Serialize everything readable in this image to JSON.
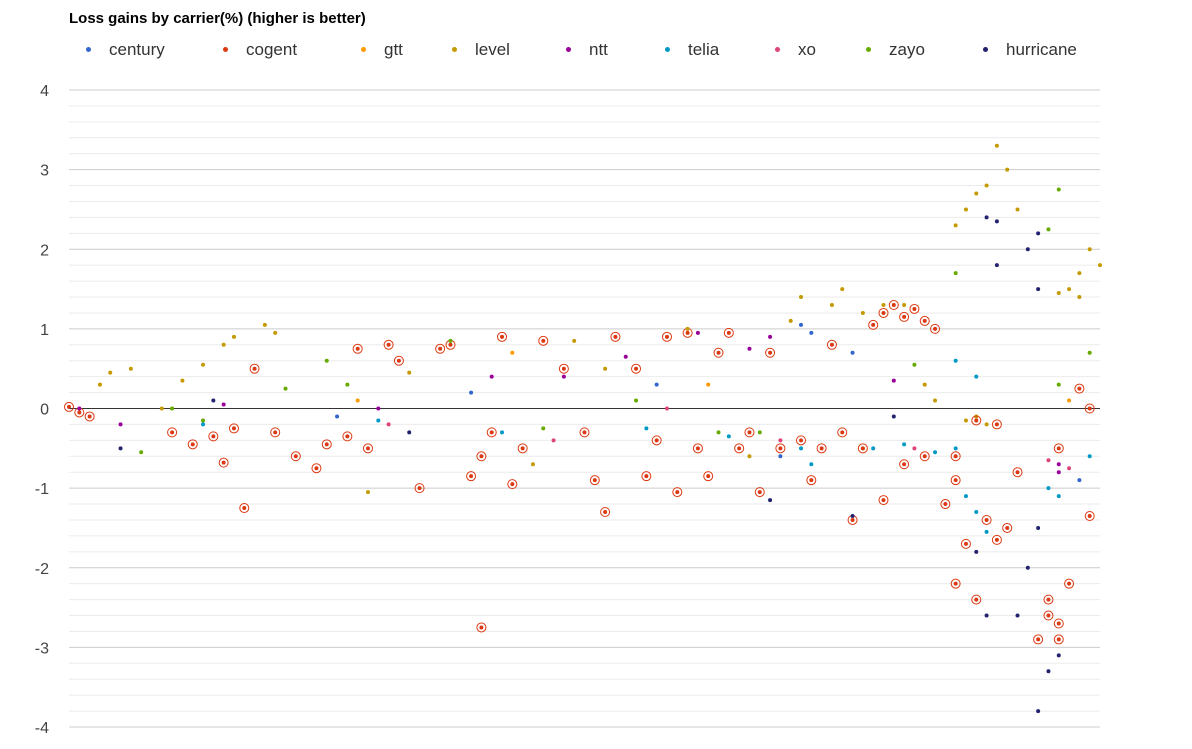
{
  "chart_data": {
    "type": "scatter",
    "title": "Loss gains by carrier(%) (higher is better)",
    "xlabel": "",
    "ylabel": "",
    "ylim": [
      -4,
      4
    ],
    "yticks": [
      "4",
      "3",
      "2",
      "1",
      "0",
      "-1",
      "-2",
      "-3",
      "-4"
    ],
    "grid": true,
    "legend_position": "top",
    "series": [
      {
        "name": "century",
        "color": "#3366cc"
      },
      {
        "name": "cogent",
        "color": "#dc3912",
        "highlighted": true
      },
      {
        "name": "gtt",
        "color": "#ff9900"
      },
      {
        "name": "level",
        "color": "#c49a00"
      },
      {
        "name": "ntt",
        "color": "#990099"
      },
      {
        "name": "telia",
        "color": "#0099c6"
      },
      {
        "name": "xo",
        "color": "#dd4477"
      },
      {
        "name": "zayo",
        "color": "#66aa00"
      },
      {
        "name": "hurricane",
        "color": "#22226e"
      }
    ],
    "points": [
      {
        "s": "cogent",
        "x": 0.0,
        "y": 0.02
      },
      {
        "s": "cogent",
        "x": 0.01,
        "y": -0.05
      },
      {
        "s": "ntt",
        "x": 0.01,
        "y": 0.0
      },
      {
        "s": "cogent",
        "x": 0.02,
        "y": -0.1
      },
      {
        "s": "level",
        "x": 0.03,
        "y": 0.3
      },
      {
        "s": "level",
        "x": 0.04,
        "y": 0.45
      },
      {
        "s": "level",
        "x": 0.06,
        "y": 0.5
      },
      {
        "s": "zayo",
        "x": 0.07,
        "y": -0.55
      },
      {
        "s": "hurricane",
        "x": 0.05,
        "y": -0.5
      },
      {
        "s": "ntt",
        "x": 0.05,
        "y": -0.2
      },
      {
        "s": "level",
        "x": 0.09,
        "y": 0.0
      },
      {
        "s": "level",
        "x": 0.11,
        "y": 0.35
      },
      {
        "s": "level",
        "x": 0.13,
        "y": 0.55
      },
      {
        "s": "level",
        "x": 0.15,
        "y": 0.8
      },
      {
        "s": "level",
        "x": 0.16,
        "y": 0.9
      },
      {
        "s": "cogent",
        "x": 0.1,
        "y": -0.3
      },
      {
        "s": "cogent",
        "x": 0.12,
        "y": -0.45
      },
      {
        "s": "cogent",
        "x": 0.14,
        "y": -0.35
      },
      {
        "s": "cogent",
        "x": 0.16,
        "y": -0.25
      },
      {
        "s": "cogent",
        "x": 0.17,
        "y": -1.25
      },
      {
        "s": "zayo",
        "x": 0.1,
        "y": 0.0
      },
      {
        "s": "zayo",
        "x": 0.13,
        "y": -0.15
      },
      {
        "s": "telia",
        "x": 0.13,
        "y": -0.2
      },
      {
        "s": "hurricane",
        "x": 0.14,
        "y": 0.1
      },
      {
        "s": "ntt",
        "x": 0.15,
        "y": 0.05
      },
      {
        "s": "cogent",
        "x": 0.15,
        "y": -0.68
      },
      {
        "s": "level",
        "x": 0.19,
        "y": 1.05
      },
      {
        "s": "level",
        "x": 0.2,
        "y": 0.95
      },
      {
        "s": "cogent",
        "x": 0.18,
        "y": 0.5
      },
      {
        "s": "zayo",
        "x": 0.21,
        "y": 0.25
      },
      {
        "s": "cogent",
        "x": 0.2,
        "y": -0.3
      },
      {
        "s": "cogent",
        "x": 0.22,
        "y": -0.6
      },
      {
        "s": "cogent",
        "x": 0.24,
        "y": -0.75
      },
      {
        "s": "cogent",
        "x": 0.25,
        "y": -0.45
      },
      {
        "s": "cogent",
        "x": 0.27,
        "y": -0.35
      },
      {
        "s": "cogent",
        "x": 0.29,
        "y": -0.5
      },
      {
        "s": "cogent",
        "x": 0.28,
        "y": 0.75
      },
      {
        "s": "cogent",
        "x": 0.31,
        "y": 0.8
      },
      {
        "s": "cogent",
        "x": 0.32,
        "y": 0.6
      },
      {
        "s": "cogent",
        "x": 0.34,
        "y": -1.0
      },
      {
        "s": "zayo",
        "x": 0.25,
        "y": 0.6
      },
      {
        "s": "zayo",
        "x": 0.27,
        "y": 0.3
      },
      {
        "s": "century",
        "x": 0.26,
        "y": -0.1
      },
      {
        "s": "telia",
        "x": 0.3,
        "y": -0.15
      },
      {
        "s": "gtt",
        "x": 0.28,
        "y": 0.1
      },
      {
        "s": "ntt",
        "x": 0.3,
        "y": 0.0
      },
      {
        "s": "xo",
        "x": 0.31,
        "y": -0.2
      },
      {
        "s": "level",
        "x": 0.29,
        "y": -1.05
      },
      {
        "s": "level",
        "x": 0.33,
        "y": 0.45
      },
      {
        "s": "hurricane",
        "x": 0.33,
        "y": -0.3
      },
      {
        "s": "cogent",
        "x": 0.36,
        "y": 0.75
      },
      {
        "s": "cogent",
        "x": 0.37,
        "y": 0.8
      },
      {
        "s": "cogent",
        "x": 0.39,
        "y": -0.85
      },
      {
        "s": "cogent",
        "x": 0.4,
        "y": -0.6
      },
      {
        "s": "cogent",
        "x": 0.41,
        "y": -0.3
      },
      {
        "s": "cogent",
        "x": 0.42,
        "y": 0.9
      },
      {
        "s": "cogent",
        "x": 0.4,
        "y": -2.75
      },
      {
        "s": "cogent",
        "x": 0.43,
        "y": -0.95
      },
      {
        "s": "cogent",
        "x": 0.44,
        "y": -0.5
      },
      {
        "s": "cogent",
        "x": 0.46,
        "y": 0.85
      },
      {
        "s": "zayo",
        "x": 0.37,
        "y": 0.85
      },
      {
        "s": "century",
        "x": 0.39,
        "y": 0.2
      },
      {
        "s": "ntt",
        "x": 0.41,
        "y": 0.4
      },
      {
        "s": "telia",
        "x": 0.42,
        "y": -0.3
      },
      {
        "s": "gtt",
        "x": 0.43,
        "y": 0.7
      },
      {
        "s": "level",
        "x": 0.45,
        "y": -0.7
      },
      {
        "s": "xo",
        "x": 0.47,
        "y": -0.4
      },
      {
        "s": "zayo",
        "x": 0.46,
        "y": -0.25
      },
      {
        "s": "ntt",
        "x": 0.48,
        "y": 0.4
      },
      {
        "s": "level",
        "x": 0.49,
        "y": 0.85
      },
      {
        "s": "cogent",
        "x": 0.48,
        "y": 0.5
      },
      {
        "s": "cogent",
        "x": 0.5,
        "y": -0.3
      },
      {
        "s": "cogent",
        "x": 0.51,
        "y": -0.9
      },
      {
        "s": "cogent",
        "x": 0.52,
        "y": -1.3
      },
      {
        "s": "cogent",
        "x": 0.53,
        "y": 0.9
      },
      {
        "s": "cogent",
        "x": 0.55,
        "y": 0.5
      },
      {
        "s": "cogent",
        "x": 0.56,
        "y": -0.85
      },
      {
        "s": "cogent",
        "x": 0.57,
        "y": -0.4
      },
      {
        "s": "cogent",
        "x": 0.58,
        "y": 0.9
      },
      {
        "s": "cogent",
        "x": 0.59,
        "y": -1.05
      },
      {
        "s": "cogent",
        "x": 0.6,
        "y": 0.95
      },
      {
        "s": "cogent",
        "x": 0.61,
        "y": -0.5
      },
      {
        "s": "cogent",
        "x": 0.62,
        "y": -0.85
      },
      {
        "s": "cogent",
        "x": 0.63,
        "y": 0.7
      },
      {
        "s": "cogent",
        "x": 0.64,
        "y": 0.95
      },
      {
        "s": "cogent",
        "x": 0.65,
        "y": -0.5
      },
      {
        "s": "cogent",
        "x": 0.66,
        "y": -0.3
      },
      {
        "s": "cogent",
        "x": 0.67,
        "y": -1.05
      },
      {
        "s": "cogent",
        "x": 0.68,
        "y": 0.7
      },
      {
        "s": "cogent",
        "x": 0.69,
        "y": -0.5
      },
      {
        "s": "level",
        "x": 0.52,
        "y": 0.5
      },
      {
        "s": "ntt",
        "x": 0.54,
        "y": 0.65
      },
      {
        "s": "zayo",
        "x": 0.55,
        "y": 0.1
      },
      {
        "s": "telia",
        "x": 0.56,
        "y": -0.25
      },
      {
        "s": "century",
        "x": 0.57,
        "y": 0.3
      },
      {
        "s": "xo",
        "x": 0.58,
        "y": 0.0
      },
      {
        "s": "level",
        "x": 0.6,
        "y": 1.0
      },
      {
        "s": "ntt",
        "x": 0.61,
        "y": 0.95
      },
      {
        "s": "gtt",
        "x": 0.62,
        "y": 0.3
      },
      {
        "s": "zayo",
        "x": 0.63,
        "y": -0.3
      },
      {
        "s": "telia",
        "x": 0.64,
        "y": -0.35
      },
      {
        "s": "ntt",
        "x": 0.66,
        "y": 0.75
      },
      {
        "s": "ntt",
        "x": 0.68,
        "y": 0.9
      },
      {
        "s": "level",
        "x": 0.66,
        "y": -0.6
      },
      {
        "s": "zayo",
        "x": 0.67,
        "y": -0.3
      },
      {
        "s": "xo",
        "x": 0.69,
        "y": -0.4
      },
      {
        "s": "century",
        "x": 0.69,
        "y": -0.6
      },
      {
        "s": "hurricane",
        "x": 0.68,
        "y": -1.15
      },
      {
        "s": "level",
        "x": 0.7,
        "y": 1.1
      },
      {
        "s": "level",
        "x": 0.71,
        "y": 1.4
      },
      {
        "s": "century",
        "x": 0.71,
        "y": 1.05
      },
      {
        "s": "century",
        "x": 0.72,
        "y": 0.95
      },
      {
        "s": "telia",
        "x": 0.71,
        "y": -0.5
      },
      {
        "s": "telia",
        "x": 0.72,
        "y": -0.7
      },
      {
        "s": "cogent",
        "x": 0.71,
        "y": -0.4
      },
      {
        "s": "cogent",
        "x": 0.72,
        "y": -0.9
      },
      {
        "s": "cogent",
        "x": 0.73,
        "y": -0.5
      },
      {
        "s": "cogent",
        "x": 0.74,
        "y": 0.8
      },
      {
        "s": "cogent",
        "x": 0.75,
        "y": -0.3
      },
      {
        "s": "cogent",
        "x": 0.76,
        "y": -1.4
      },
      {
        "s": "level",
        "x": 0.74,
        "y": 1.3
      },
      {
        "s": "level",
        "x": 0.75,
        "y": 1.5
      },
      {
        "s": "level",
        "x": 0.77,
        "y": 1.2
      },
      {
        "s": "century",
        "x": 0.76,
        "y": 0.7
      },
      {
        "s": "hurricane",
        "x": 0.76,
        "y": -1.35
      },
      {
        "s": "zayo",
        "x": 0.77,
        "y": -0.5
      },
      {
        "s": "telia",
        "x": 0.78,
        "y": -0.5
      },
      {
        "s": "cogent",
        "x": 0.77,
        "y": -0.5
      },
      {
        "s": "cogent",
        "x": 0.78,
        "y": 1.05
      },
      {
        "s": "cogent",
        "x": 0.79,
        "y": 1.2
      },
      {
        "s": "cogent",
        "x": 0.8,
        "y": 1.3
      },
      {
        "s": "cogent",
        "x": 0.81,
        "y": 1.15
      },
      {
        "s": "cogent",
        "x": 0.82,
        "y": 1.25
      },
      {
        "s": "cogent",
        "x": 0.83,
        "y": 1.1
      },
      {
        "s": "cogent",
        "x": 0.84,
        "y": 1.0
      },
      {
        "s": "cogent",
        "x": 0.79,
        "y": -1.15
      },
      {
        "s": "cogent",
        "x": 0.81,
        "y": -0.7
      },
      {
        "s": "cogent",
        "x": 0.83,
        "y": -0.6
      },
      {
        "s": "cogent",
        "x": 0.85,
        "y": -1.2
      },
      {
        "s": "cogent",
        "x": 0.86,
        "y": -0.9
      },
      {
        "s": "level",
        "x": 0.79,
        "y": 1.3
      },
      {
        "s": "level",
        "x": 0.81,
        "y": 1.3
      },
      {
        "s": "level",
        "x": 0.83,
        "y": 0.3
      },
      {
        "s": "level",
        "x": 0.84,
        "y": 0.1
      },
      {
        "s": "telia",
        "x": 0.81,
        "y": -0.45
      },
      {
        "s": "telia",
        "x": 0.84,
        "y": -0.55
      },
      {
        "s": "xo",
        "x": 0.82,
        "y": -0.5
      },
      {
        "s": "ntt",
        "x": 0.8,
        "y": 0.35
      },
      {
        "s": "zayo",
        "x": 0.82,
        "y": 0.55
      },
      {
        "s": "hurricane",
        "x": 0.8,
        "y": -0.1
      },
      {
        "s": "level",
        "x": 0.86,
        "y": 2.3
      },
      {
        "s": "level",
        "x": 0.87,
        "y": 2.5
      },
      {
        "s": "level",
        "x": 0.88,
        "y": 2.7
      },
      {
        "s": "level",
        "x": 0.89,
        "y": 2.8
      },
      {
        "s": "level",
        "x": 0.9,
        "y": 3.3
      },
      {
        "s": "level",
        "x": 0.91,
        "y": 3.0
      },
      {
        "s": "level",
        "x": 0.92,
        "y": 2.5
      },
      {
        "s": "level",
        "x": 0.87,
        "y": -0.15
      },
      {
        "s": "level",
        "x": 0.88,
        "y": -0.1
      },
      {
        "s": "level",
        "x": 0.89,
        "y": -0.2
      },
      {
        "s": "hurricane",
        "x": 0.89,
        "y": 2.4
      },
      {
        "s": "hurricane",
        "x": 0.9,
        "y": 2.35
      },
      {
        "s": "hurricane",
        "x": 0.9,
        "y": 1.8
      },
      {
        "s": "hurricane",
        "x": 0.93,
        "y": 2.0
      },
      {
        "s": "hurricane",
        "x": 0.94,
        "y": 1.5
      },
      {
        "s": "hurricane",
        "x": 0.94,
        "y": 2.2
      },
      {
        "s": "zayo",
        "x": 0.95,
        "y": 2.25
      },
      {
        "s": "zayo",
        "x": 0.96,
        "y": 2.75
      },
      {
        "s": "zayo",
        "x": 0.96,
        "y": 0.3
      },
      {
        "s": "zayo",
        "x": 0.86,
        "y": 1.7
      },
      {
        "s": "telia",
        "x": 0.86,
        "y": -0.5
      },
      {
        "s": "telia",
        "x": 0.87,
        "y": -1.1
      },
      {
        "s": "telia",
        "x": 0.88,
        "y": -1.3
      },
      {
        "s": "telia",
        "x": 0.89,
        "y": -1.55
      },
      {
        "s": "telia",
        "x": 0.95,
        "y": -1.0
      },
      {
        "s": "telia",
        "x": 0.96,
        "y": -1.1
      },
      {
        "s": "telia",
        "x": 0.86,
        "y": 0.6
      },
      {
        "s": "telia",
        "x": 0.88,
        "y": 0.4
      },
      {
        "s": "ntt",
        "x": 0.96,
        "y": -0.8
      },
      {
        "s": "xo",
        "x": 0.95,
        "y": -0.65
      },
      {
        "s": "cogent",
        "x": 0.86,
        "y": -2.2
      },
      {
        "s": "cogent",
        "x": 0.87,
        "y": -1.7
      },
      {
        "s": "cogent",
        "x": 0.88,
        "y": -2.4
      },
      {
        "s": "cogent",
        "x": 0.89,
        "y": -1.4
      },
      {
        "s": "cogent",
        "x": 0.9,
        "y": -1.65
      },
      {
        "s": "cogent",
        "x": 0.91,
        "y": -1.5
      },
      {
        "s": "cogent",
        "x": 0.86,
        "y": -0.6
      },
      {
        "s": "cogent",
        "x": 0.88,
        "y": -0.15
      },
      {
        "s": "cogent",
        "x": 0.9,
        "y": -0.2
      },
      {
        "s": "cogent",
        "x": 0.92,
        "y": -0.8
      },
      {
        "s": "cogent",
        "x": 0.95,
        "y": -2.4
      },
      {
        "s": "cogent",
        "x": 0.95,
        "y": -2.6
      },
      {
        "s": "cogent",
        "x": 0.96,
        "y": -2.9
      },
      {
        "s": "cogent",
        "x": 0.96,
        "y": -2.7
      },
      {
        "s": "cogent",
        "x": 0.97,
        "y": -2.2
      },
      {
        "s": "cogent",
        "x": 0.94,
        "y": -2.9
      },
      {
        "s": "cogent",
        "x": 0.96,
        "y": -0.5
      },
      {
        "s": "cogent",
        "x": 0.98,
        "y": 0.25
      },
      {
        "s": "cogent",
        "x": 0.99,
        "y": 0.0
      },
      {
        "s": "cogent",
        "x": 0.99,
        "y": -1.35
      },
      {
        "s": "hurricane",
        "x": 0.93,
        "y": -2.0
      },
      {
        "s": "hurricane",
        "x": 0.94,
        "y": -1.5
      },
      {
        "s": "hurricane",
        "x": 0.94,
        "y": -3.8
      },
      {
        "s": "hurricane",
        "x": 0.95,
        "y": -3.3
      },
      {
        "s": "hurricane",
        "x": 0.96,
        "y": -3.1
      },
      {
        "s": "hurricane",
        "x": 0.92,
        "y": -2.6
      },
      {
        "s": "hurricane",
        "x": 0.88,
        "y": -1.8
      },
      {
        "s": "hurricane",
        "x": 0.89,
        "y": -2.6
      },
      {
        "s": "level",
        "x": 0.97,
        "y": 1.5
      },
      {
        "s": "level",
        "x": 0.98,
        "y": 1.7
      },
      {
        "s": "level",
        "x": 0.99,
        "y": 2.0
      },
      {
        "s": "level",
        "x": 1.0,
        "y": 1.8
      },
      {
        "s": "level",
        "x": 0.98,
        "y": 1.4
      },
      {
        "s": "level",
        "x": 0.96,
        "y": 1.45
      },
      {
        "s": "zayo",
        "x": 0.99,
        "y": 0.7
      },
      {
        "s": "century",
        "x": 0.98,
        "y": -0.9
      },
      {
        "s": "gtt",
        "x": 0.97,
        "y": 0.1
      },
      {
        "s": "telia",
        "x": 0.99,
        "y": -0.6
      },
      {
        "s": "xo",
        "x": 0.97,
        "y": -0.75
      },
      {
        "s": "ntt",
        "x": 0.96,
        "y": -0.7
      }
    ]
  }
}
